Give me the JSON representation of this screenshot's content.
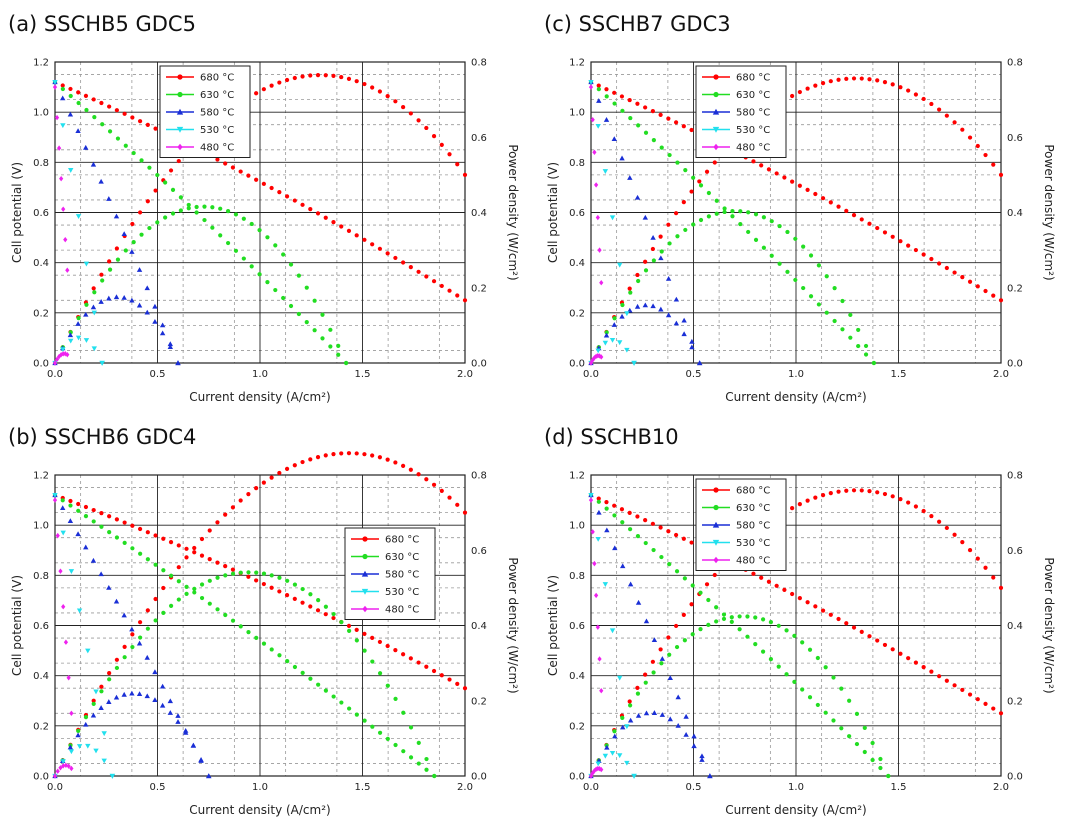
{
  "figure": {
    "x_label": "Current density (A/cm²)",
    "y_left_label": "Cell potential (V)",
    "y_right_label": "Power density (W/cm²)",
    "colors": {
      "680": "#ff0000",
      "630": "#22dd22",
      "580": "#1a2fd6",
      "530": "#22e0ee",
      "480": "#ee22ee"
    }
  },
  "chart_data": [
    {
      "type": "line",
      "title": "(a) SSCHB5 GDC5",
      "xlim": [
        0,
        2.0
      ],
      "ylim_left": [
        0,
        1.2
      ],
      "ylim_right": [
        0,
        0.8
      ],
      "x_ticks": [
        "0.0",
        "0.5",
        "1.0",
        "1.5",
        "2.0"
      ],
      "y_left_ticks": [
        "0.0",
        "0.2",
        "0.4",
        "0.6",
        "0.8",
        "1.0",
        "1.2"
      ],
      "y_right_ticks": [
        "0.0",
        "0.2",
        "0.4",
        "0.6",
        "0.8"
      ],
      "legend": "top-left",
      "legend_entries": [
        "680 °C",
        "630 °C",
        "580 °C",
        "530 °C",
        "480 °C"
      ],
      "series": [
        {
          "name": "680 °C",
          "color": "#ff0000",
          "ocv": 1.12,
          "x_max": 2.0,
          "v_end": 0.25,
          "curv": 0.15,
          "marker": "circle"
        },
        {
          "name": "630 °C",
          "color": "#22dd22",
          "ocv": 1.12,
          "x_max": 1.42,
          "v_end": 0.0,
          "curv": 0.1,
          "marker": "circle"
        },
        {
          "name": "580 °C",
          "color": "#1a2fd6",
          "ocv": 1.12,
          "x_max": 0.6,
          "v_end": 0.0,
          "curv": 0.1,
          "marker": "triangle-up"
        },
        {
          "name": "530 °C",
          "color": "#22e0ee",
          "ocv": 1.12,
          "x_max": 0.23,
          "v_end": 0.0,
          "curv": 0.1,
          "marker": "triangle-down"
        },
        {
          "name": "480 °C",
          "color": "#ee22ee",
          "ocv": 1.1,
          "x_max": 0.06,
          "v_end": 0.37,
          "curv": 0.0,
          "marker": "diamond"
        }
      ]
    },
    {
      "type": "line",
      "title": "(c) SSCHB7 GDC3",
      "xlim": [
        0,
        2.0
      ],
      "ylim_left": [
        0,
        1.2
      ],
      "ylim_right": [
        0,
        0.8
      ],
      "x_ticks": [
        "0.0",
        "0.5",
        "1.0",
        "1.5",
        "2.0"
      ],
      "y_left_ticks": [
        "0.0",
        "0.2",
        "0.4",
        "0.6",
        "0.8",
        "1.0",
        "1.2"
      ],
      "y_right_ticks": [
        "0.0",
        "0.2",
        "0.4",
        "0.6",
        "0.8"
      ],
      "legend": "top-left",
      "legend_entries": [
        "680 °C",
        "630 °C",
        "580 °C",
        "530 °C",
        "480 °C"
      ],
      "series": [
        {
          "name": "680 °C",
          "color": "#ff0000",
          "ocv": 1.12,
          "x_max": 2.0,
          "v_end": 0.25,
          "curv": 0.12,
          "marker": "circle"
        },
        {
          "name": "630 °C",
          "color": "#22dd22",
          "ocv": 1.12,
          "x_max": 1.38,
          "v_end": 0.0,
          "curv": 0.1,
          "marker": "circle"
        },
        {
          "name": "580 °C",
          "color": "#1a2fd6",
          "ocv": 1.12,
          "x_max": 0.53,
          "v_end": 0.0,
          "curv": 0.08,
          "marker": "triangle-up"
        },
        {
          "name": "530 °C",
          "color": "#22e0ee",
          "ocv": 1.12,
          "x_max": 0.21,
          "v_end": 0.0,
          "curv": 0.08,
          "marker": "triangle-down"
        },
        {
          "name": "480 °C",
          "color": "#ee22ee",
          "ocv": 1.1,
          "x_max": 0.05,
          "v_end": 0.32,
          "curv": 0.0,
          "marker": "diamond"
        }
      ]
    },
    {
      "type": "line",
      "title": "(b) SSCHB6 GDC4",
      "xlim": [
        0,
        2.0
      ],
      "ylim_left": [
        0,
        1.2
      ],
      "ylim_right": [
        0,
        0.8
      ],
      "x_ticks": [
        "0.0",
        "0.5",
        "1.0",
        "1.5",
        "2.0"
      ],
      "y_left_ticks": [
        "0.0",
        "0.2",
        "0.4",
        "0.6",
        "0.8",
        "1.0",
        "1.2"
      ],
      "y_right_ticks": [
        "0.0",
        "0.2",
        "0.4",
        "0.6",
        "0.8"
      ],
      "legend": "right",
      "legend_entries": [
        "680 °C",
        "630 °C",
        "580 °C",
        "530 °C",
        "480 °C"
      ],
      "series": [
        {
          "name": "680 °C",
          "color": "#ff0000",
          "ocv": 1.12,
          "x_max": 2.0,
          "v_end": 0.35,
          "curv": 0.15,
          "marker": "circle"
        },
        {
          "name": "630 °C",
          "color": "#22dd22",
          "ocv": 1.12,
          "x_max": 1.85,
          "v_end": 0.0,
          "curv": 0.1,
          "marker": "circle"
        },
        {
          "name": "580 °C",
          "color": "#1a2fd6",
          "ocv": 1.12,
          "x_max": 0.75,
          "v_end": 0.0,
          "curv": 0.1,
          "marker": "triangle-up"
        },
        {
          "name": "530 °C",
          "color": "#22e0ee",
          "ocv": 1.12,
          "x_max": 0.28,
          "v_end": 0.0,
          "curv": 0.08,
          "marker": "triangle-down"
        },
        {
          "name": "480 °C",
          "color": "#ee22ee",
          "ocv": 1.1,
          "x_max": 0.08,
          "v_end": 0.25,
          "curv": 0.0,
          "marker": "diamond"
        }
      ]
    },
    {
      "type": "line",
      "title": "(d) SSCHB10",
      "xlim": [
        0,
        2.0
      ],
      "ylim_left": [
        0,
        1.2
      ],
      "ylim_right": [
        0,
        0.8
      ],
      "x_ticks": [
        "0.0",
        "0.5",
        "1.0",
        "1.5",
        "2.0"
      ],
      "y_left_ticks": [
        "0.0",
        "0.2",
        "0.4",
        "0.6",
        "0.8",
        "1.0",
        "1.2"
      ],
      "y_right_ticks": [
        "0.0",
        "0.2",
        "0.4",
        "0.6",
        "0.8"
      ],
      "legend": "top-left",
      "legend_entries": [
        "680 °C",
        "630 °C",
        "580 °C",
        "530 °C",
        "480 °C"
      ],
      "series": [
        {
          "name": "680 °C",
          "color": "#ff0000",
          "ocv": 1.12,
          "x_max": 2.0,
          "v_end": 0.25,
          "curv": 0.13,
          "marker": "circle"
        },
        {
          "name": "630 °C",
          "color": "#22dd22",
          "ocv": 1.12,
          "x_max": 1.45,
          "v_end": 0.0,
          "curv": 0.1,
          "marker": "circle"
        },
        {
          "name": "580 °C",
          "color": "#1a2fd6",
          "ocv": 1.12,
          "x_max": 0.58,
          "v_end": 0.0,
          "curv": 0.08,
          "marker": "triangle-up"
        },
        {
          "name": "530 °C",
          "color": "#22e0ee",
          "ocv": 1.12,
          "x_max": 0.21,
          "v_end": 0.0,
          "curv": 0.08,
          "marker": "triangle-down"
        },
        {
          "name": "480 °C",
          "color": "#ee22ee",
          "ocv": 1.1,
          "x_max": 0.05,
          "v_end": 0.34,
          "curv": 0.0,
          "marker": "diamond"
        }
      ]
    }
  ]
}
